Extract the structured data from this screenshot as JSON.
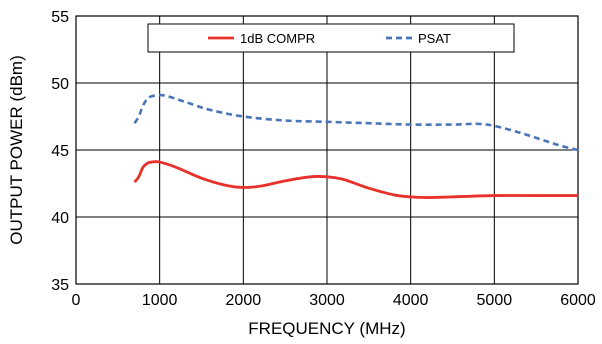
{
  "chart_data": {
    "type": "line",
    "title": "",
    "xlabel": "FREQUENCY (MHz)",
    "ylabel": "OUTPUT POWER (dBm)",
    "xlim": [
      0,
      6000
    ],
    "ylim": [
      35,
      55
    ],
    "x_ticks": [
      0,
      1000,
      2000,
      3000,
      4000,
      5000,
      6000
    ],
    "y_ticks": [
      35,
      40,
      45,
      50,
      55
    ],
    "grid": "vertical-and-horizontal",
    "legend_position": "top-center",
    "series": [
      {
        "name": "1dB COMPR",
        "color": "#e8312a",
        "line_style": "solid",
        "x": [
          700,
          750,
          800,
          850,
          900,
          1000,
          1200,
          1500,
          1800,
          2000,
          2200,
          2500,
          2800,
          3000,
          3200,
          3500,
          3800,
          4000,
          4200,
          4500,
          5000,
          5500,
          6000
        ],
        "y": [
          42.6,
          43.0,
          43.7,
          44.0,
          44.1,
          44.1,
          43.7,
          42.9,
          42.35,
          42.2,
          42.3,
          42.7,
          43.0,
          43.0,
          42.8,
          42.15,
          41.65,
          41.5,
          41.45,
          41.5,
          41.6,
          41.6,
          41.6
        ]
      },
      {
        "name": "PSAT",
        "color": "#4a76b8",
        "line_style": "dashed",
        "x": [
          700,
          750,
          800,
          850,
          900,
          1000,
          1100,
          1300,
          1600,
          2000,
          2500,
          3000,
          3500,
          4000,
          4500,
          4800,
          5000,
          5300,
          5600,
          5800,
          6000
        ],
        "y": [
          47.0,
          47.5,
          48.3,
          48.8,
          49.0,
          49.1,
          49.0,
          48.6,
          48.0,
          47.5,
          47.2,
          47.1,
          47.0,
          46.9,
          46.9,
          46.95,
          46.8,
          46.3,
          45.7,
          45.3,
          45.0
        ]
      }
    ]
  }
}
